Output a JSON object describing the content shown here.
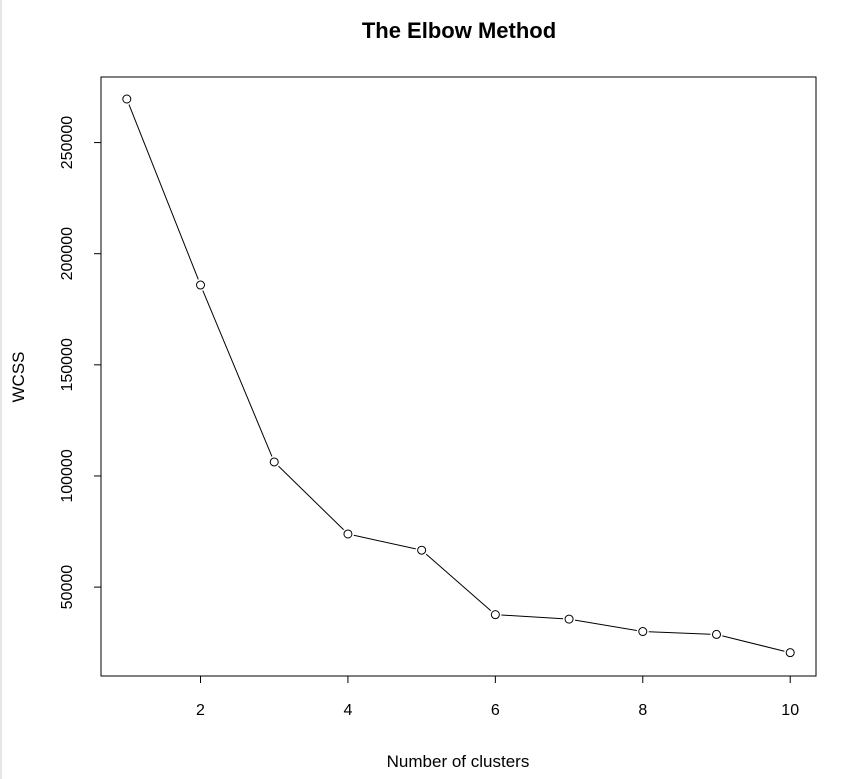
{
  "chart_data": {
    "type": "line",
    "title": "The Elbow Method",
    "xlabel": "Number of clusters",
    "ylabel": "WCSS",
    "x": [
      1,
      2,
      3,
      4,
      5,
      6,
      7,
      8,
      9,
      10
    ],
    "series": [
      {
        "values": [
          269600,
          185900,
          106300,
          73900,
          66600,
          37600,
          35600,
          30000,
          28700,
          20500
        ],
        "marker": "open-circle",
        "color": "#000000"
      }
    ],
    "xlim": [
      0.65,
      10.35
    ],
    "ylim": [
      10000,
      279500
    ],
    "xticks": [
      2,
      4,
      6,
      8,
      10
    ],
    "yticks": [
      50000,
      100000,
      150000,
      200000,
      250000
    ],
    "xtick_labels": [
      "2",
      "4",
      "6",
      "8",
      "10"
    ],
    "ytick_labels": [
      "50000",
      "100000",
      "150000",
      "200000",
      "250000"
    ],
    "grid": false,
    "legend": "none",
    "colors": {
      "line": "#000000",
      "marker_fill": "#ffffff",
      "background": "#ffffff"
    }
  }
}
